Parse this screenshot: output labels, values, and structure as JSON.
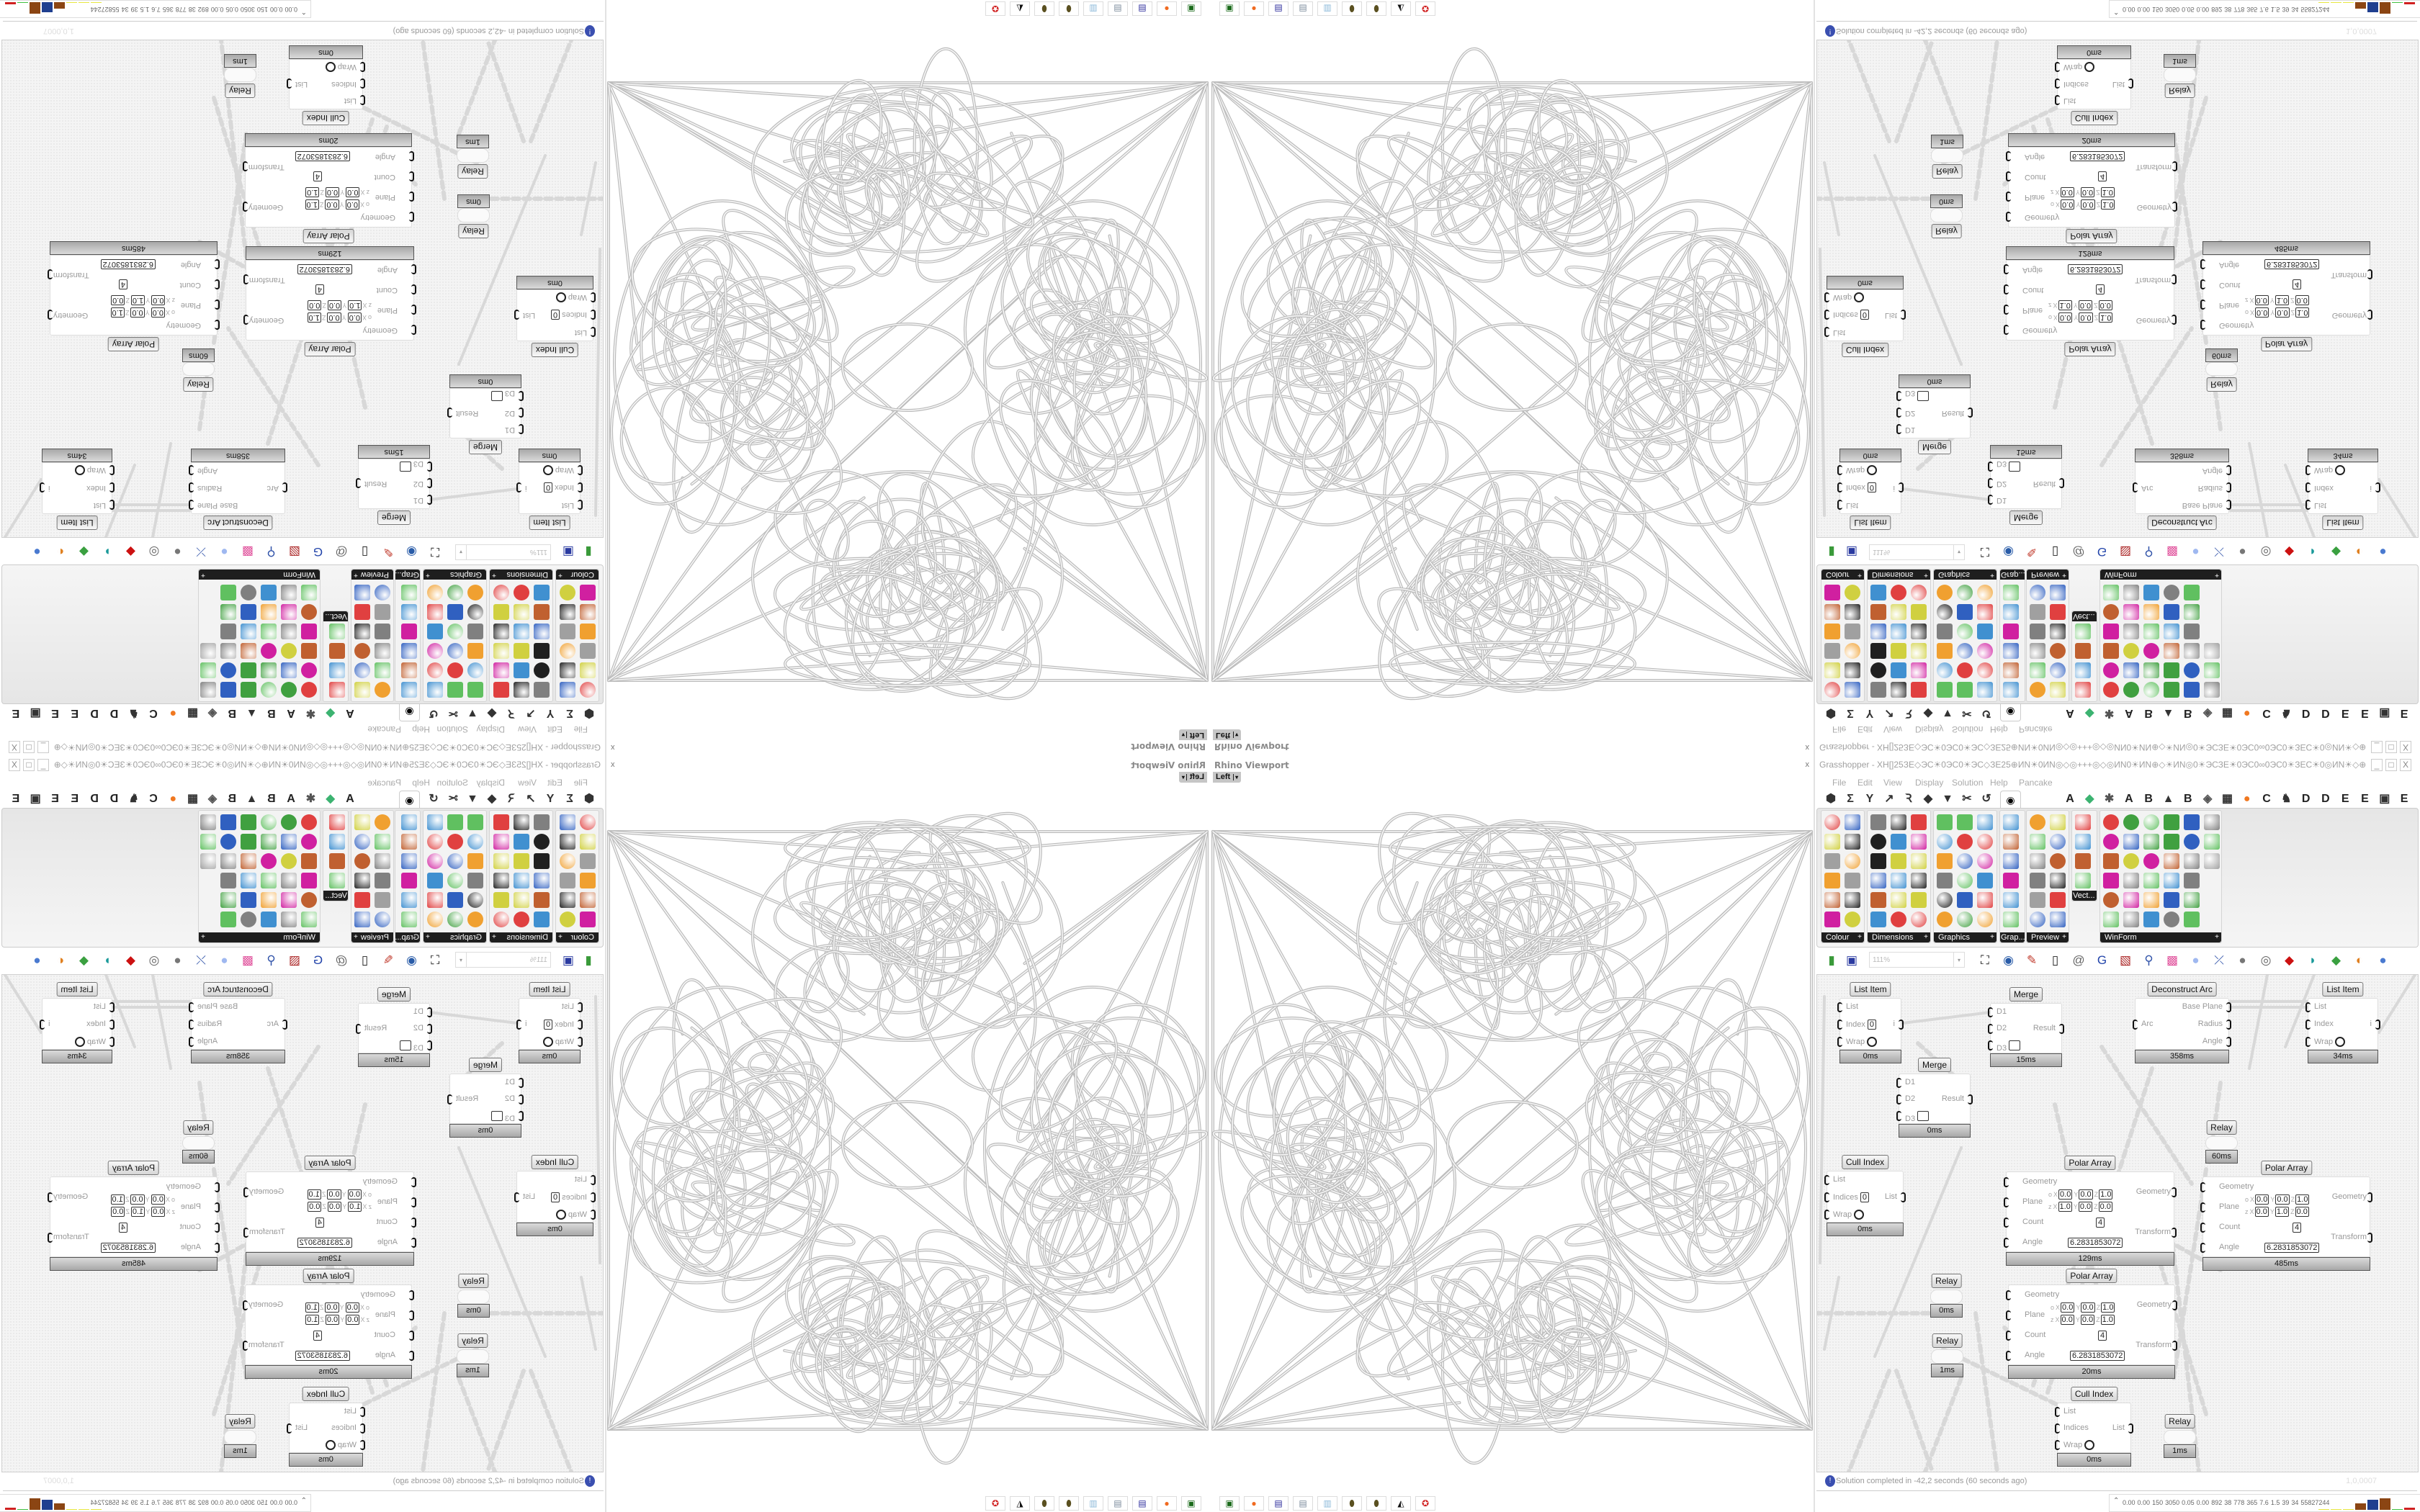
{
  "rhino": {
    "title": "Rhino Viewport",
    "view": "Left",
    "view_dropdown": "▾",
    "close": "x"
  },
  "gh": {
    "title": "Grasshopper - XH[]25ЗЕ◇ЭС☀0ЭС0☀ЭС◇ЗЕ25⊕ИN☀0ИN◎◇◎+++◎◇◎ИN0☀ИN⊕◇☀ИN◎0☀ЭСЗЕ☀0ЭС0∞0ЭС0☀ЗЕС☀0◎ИN☀◇⊕ЗЕЗЕ⊞+25+⊞ЗЕЗЕ⊕◇☀ЭСЗЕ⊞+☀ЭС...",
    "window_controls": [
      "_",
      "□",
      "X"
    ],
    "menu": [
      "File",
      "Edit",
      "View",
      "Display",
      "Solution",
      "Help",
      "Pancake"
    ],
    "tab_icons_left": [
      {
        "name": "hexagon-icon",
        "glyph": "⬢"
      },
      {
        "name": "sigma-icon",
        "glyph": "Σ"
      },
      {
        "name": "branch-icon",
        "glyph": "Y"
      },
      {
        "name": "vector-arrow-icon",
        "glyph": "↗"
      },
      {
        "name": "curve-icon",
        "glyph": "Ꝛ"
      },
      {
        "name": "surface-icon",
        "glyph": "◆"
      },
      {
        "name": "mesh-icon",
        "glyph": "▼"
      },
      {
        "name": "intersect-icon",
        "glyph": "✂"
      },
      {
        "name": "transform-icon",
        "glyph": "↺"
      }
    ],
    "tab_selected": {
      "name": "eye-display-icon",
      "glyph": "◉"
    },
    "tab_icons_right": [
      {
        "name": "tab-a-icon",
        "glyph": "A",
        "color": "#222"
      },
      {
        "name": "green-crystal-icon",
        "glyph": "◆",
        "color": "#3cb371"
      },
      {
        "name": "gear-cluster-icon",
        "glyph": "✱",
        "color": "#555"
      },
      {
        "name": "tab-a2-icon",
        "glyph": "A",
        "color": "#222"
      },
      {
        "name": "tab-b-icon",
        "glyph": "B",
        "color": "#222"
      },
      {
        "name": "mountain-icon",
        "glyph": "▲",
        "color": "#333"
      },
      {
        "name": "tab-b2-icon",
        "glyph": "B",
        "color": "#222"
      },
      {
        "name": "shield-icon",
        "glyph": "◈",
        "color": "#555"
      },
      {
        "name": "grid-icon",
        "glyph": "▦",
        "color": "#333"
      },
      {
        "name": "orange-ball-icon",
        "glyph": "●",
        "color": "#f07820"
      },
      {
        "name": "tab-c-icon",
        "glyph": "C",
        "color": "#222"
      },
      {
        "name": "rooster-icon",
        "glyph": "♞",
        "color": "#333"
      },
      {
        "name": "tab-d-icon",
        "glyph": "D",
        "color": "#222"
      },
      {
        "name": "tab-d2-icon",
        "glyph": "D",
        "color": "#222"
      },
      {
        "name": "tab-e-icon",
        "glyph": "E",
        "color": "#222"
      },
      {
        "name": "tab-e2-icon",
        "glyph": "E",
        "color": "#222"
      },
      {
        "name": "dotted-square-icon",
        "glyph": "▣",
        "color": "#333"
      },
      {
        "name": "tab-e3-icon",
        "glyph": "E",
        "color": "#222"
      }
    ],
    "panels": [
      {
        "label": "Colour"
      },
      {
        "label": "Dimensions"
      },
      {
        "label": "Graphics"
      },
      {
        "label": "Grap..."
      },
      {
        "label": "Preview"
      },
      {
        "label": "Vect..."
      },
      {
        "label": "WinForm"
      }
    ],
    "panel_expand": "+",
    "zoom": "111%",
    "zoom_dropdown": "▾",
    "toolbar_icons": [
      {
        "name": "zoom-extents-icon",
        "glyph": "⛶",
        "color": "#222"
      },
      {
        "name": "preview-eye-icon",
        "glyph": "◉",
        "color": "#2a5ca8"
      },
      {
        "name": "sketch-pen-icon",
        "glyph": "✎",
        "color": "#c0392b"
      },
      {
        "name": "bake-icon",
        "glyph": "▯",
        "color": "#222"
      },
      {
        "name": "at-sign-icon",
        "glyph": "@",
        "color": "#666"
      },
      {
        "name": "gha-icon",
        "glyph": "G",
        "color": "#2244aa"
      },
      {
        "name": "picture-icon",
        "glyph": "▧",
        "color": "#aa2222"
      },
      {
        "name": "search-icon",
        "glyph": "⚲",
        "color": "#3355aa"
      },
      {
        "name": "help-box-icon",
        "glyph": "▩",
        "color": "#e0529c"
      },
      {
        "name": "bulb-icon",
        "glyph": "●",
        "color": "#9fb8f0"
      },
      {
        "name": "twist-icon",
        "glyph": "⤫",
        "color": "#3355aa"
      },
      {
        "name": "gray-blob-icon",
        "glyph": "●",
        "color": "#777"
      },
      {
        "name": "chain-icon",
        "glyph": "◎",
        "color": "#666"
      },
      {
        "name": "red-box-icon",
        "glyph": "◆",
        "color": "#cc1111"
      },
      {
        "name": "teal-shape-icon",
        "glyph": "◗",
        "color": "#1a9a9a"
      },
      {
        "name": "green-shape-icon",
        "glyph": "◆",
        "color": "#3aa040"
      },
      {
        "name": "orange-sphere-icon",
        "glyph": "◐",
        "color": "#e08020"
      },
      {
        "name": "blue-sphere-icon",
        "glyph": "●",
        "color": "#4a7ad0"
      }
    ],
    "axes": [
      "X",
      "Y",
      "Z"
    ],
    "nodes": [
      {
        "title": "List Item",
        "inputs": [
          {
            "label": "List"
          },
          {
            "label": "Index",
            "value": "0"
          },
          {
            "label": "Wrap",
            "toggle": true
          }
        ],
        "outputs": [
          "i"
        ],
        "time": "0ms"
      },
      {
        "title": "Merge",
        "inputs": [
          {
            "label": "D1"
          },
          {
            "label": "D2"
          },
          {
            "label": "D3",
            "toggle_box": true
          }
        ],
        "outputs": [
          "Result"
        ],
        "time": "15ms"
      },
      {
        "title": "Deconstruct Arc",
        "inputs": [
          {
            "label": "Arc"
          }
        ],
        "outputs": [
          "Base Plane",
          "Radius",
          "Angle"
        ],
        "time": "358ms"
      },
      {
        "title": "List Item",
        "inputs": [
          {
            "label": "List"
          },
          {
            "label": "Index"
          },
          {
            "label": "Wrap",
            "toggle": true
          }
        ],
        "outputs": [
          "i"
        ],
        "time": "34ms"
      },
      {
        "title": "Merge",
        "inputs": [
          {
            "label": "D1"
          },
          {
            "label": "D2"
          },
          {
            "label": "D3",
            "toggle_box": true
          }
        ],
        "outputs": [
          "Result"
        ],
        "time": "0ms"
      },
      {
        "title": "Relay",
        "inputs": [],
        "outputs": [],
        "time": "60ms"
      },
      {
        "title": "Cull Index",
        "inputs": [
          {
            "label": "List"
          },
          {
            "label": "Indices",
            "value": "0"
          },
          {
            "label": "Wrap",
            "toggle": true
          }
        ],
        "outputs": [
          "List"
        ],
        "time": "0ms"
      },
      {
        "title": "Polar Array",
        "inputs": [
          {
            "label": "Geometry"
          },
          {
            "label": "Plane",
            "o": [
              "0.0",
              "0.0",
              "1.0"
            ],
            "z": [
              "1.0",
              "0.0",
              "0.0"
            ]
          },
          {
            "label": "Count",
            "value": "4"
          },
          {
            "label": "Angle",
            "value": "6.2831853072"
          }
        ],
        "outputs": [
          "Geometry",
          "Transform"
        ],
        "time": "129ms"
      },
      {
        "title": "Polar Array",
        "inputs": [
          {
            "label": "Geometry"
          },
          {
            "label": "Plane",
            "o": [
              "0.0",
              "0.0",
              "1.0"
            ],
            "z": [
              "0.0",
              "1.0",
              "0.0"
            ]
          },
          {
            "label": "Count",
            "value": "4"
          },
          {
            "label": "Angle",
            "value": "6.2831853072"
          }
        ],
        "outputs": [
          "Geometry",
          "Transform"
        ],
        "time": "485ms"
      },
      {
        "title": "Relay",
        "inputs": [],
        "outputs": [],
        "time": "0ms"
      },
      {
        "title": "Polar Array",
        "inputs": [
          {
            "label": "Geometry"
          },
          {
            "label": "Plane",
            "o": [
              "0.0",
              "0.0",
              "1.0"
            ],
            "z": [
              "0.0",
              "0.0",
              "1.0"
            ]
          },
          {
            "label": "Count",
            "value": "4"
          },
          {
            "label": "Angle",
            "value": "6.2831853072"
          }
        ],
        "outputs": [
          "Geometry",
          "Transform"
        ],
        "time": "20ms"
      },
      {
        "title": "Relay",
        "inputs": [],
        "outputs": [],
        "time": "1ms"
      },
      {
        "title": "Cull Index",
        "inputs": [
          {
            "label": "List"
          },
          {
            "label": "Indices"
          },
          {
            "label": "Wrap",
            "toggle": true
          }
        ],
        "outputs": [
          "List"
        ],
        "time": "0ms"
      },
      {
        "title": "Relay",
        "inputs": [],
        "outputs": [],
        "time": "1ms"
      }
    ],
    "status": "Solution completed in -42,2 seconds (60 seconds ago)",
    "status_icon": "!",
    "version": "1,0,0007",
    "metrics_chevron": "⌃",
    "metrics": [
      "0.00",
      "0.00",
      "150",
      "3050",
      "0.05",
      "0.00",
      "892",
      "38",
      "778",
      "365",
      "7.6",
      "1.5",
      "39",
      "34",
      "55827244"
    ],
    "metric_bar_colors": [
      "#e8e840",
      "#e8e840",
      "#e8e840",
      "#8b4513",
      "#1f3f8f",
      "#8b4513",
      "#40c040",
      "#d02020"
    ]
  },
  "taskbar": {
    "icons": [
      {
        "name": "terminal-icon",
        "glyph": "▣",
        "color": "#1a6a1a"
      },
      {
        "name": "firefox-icon",
        "glyph": "●",
        "color": "#f06a20"
      },
      {
        "name": "floppy-64-icon",
        "glyph": "▤",
        "color": "#2a2a9a"
      },
      {
        "name": "scroll-icon",
        "glyph": "▤",
        "color": "#7a8a9a"
      },
      {
        "name": "notepad-icon",
        "glyph": "▥",
        "color": "#8ab8d8"
      },
      {
        "name": "olive-gear-icon",
        "glyph": "⬮",
        "color": "#5a5020"
      },
      {
        "name": "olive-gear-2-icon",
        "glyph": "⬮",
        "color": "#5a5020"
      },
      {
        "name": "penguin-icon",
        "glyph": "◭",
        "color": "#111"
      },
      {
        "name": "red-badge-icon",
        "glyph": "✪",
        "color": "#d02020"
      }
    ]
  }
}
